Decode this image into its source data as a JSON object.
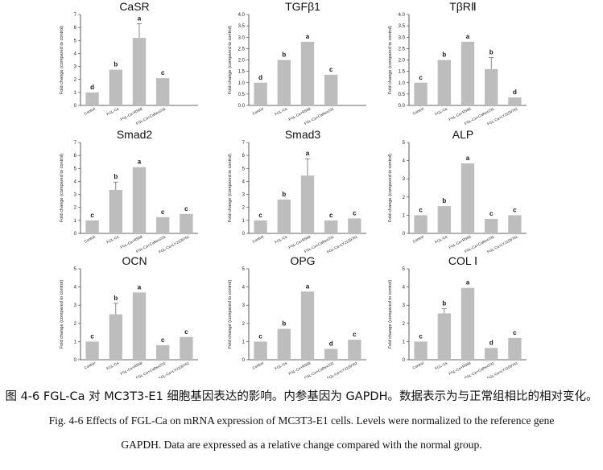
{
  "chart_data": [
    {
      "type": "bar",
      "title": "CaSR",
      "ylabel": "Fold change (compared to control)",
      "ylim": [
        0,
        7
      ],
      "yticks": [
        0,
        1,
        2,
        3,
        4,
        5,
        6,
        7
      ],
      "categories": [
        "Control",
        "FGL-Ca",
        "FGL-Ca+R568",
        "FGL-Ca+Calhex231"
      ],
      "values": [
        1.0,
        2.75,
        5.2,
        2.1
      ],
      "errors": [
        0.0,
        0.0,
        1.1,
        0.0
      ],
      "significance": [
        "d",
        "b",
        "a",
        "c"
      ]
    },
    {
      "type": "bar",
      "title": "TGFβ1",
      "ylabel": "Fold change (compared to control)",
      "ylim": [
        0,
        4
      ],
      "yticks": [
        0,
        0.5,
        1,
        1.5,
        2,
        2.5,
        3,
        3.5,
        4
      ],
      "ytick_labels": [
        "0.0",
        "0.5",
        "1.0",
        "1.5",
        "2.0",
        "2.5",
        "3.0",
        "3.5",
        "4.0"
      ],
      "categories": [
        "Control",
        "FGL-Ca",
        "FGL-Ca+R568",
        "FGL-Ca+Calhex231"
      ],
      "values": [
        1.0,
        2.0,
        2.8,
        1.35
      ],
      "errors": [
        0.0,
        0.0,
        0.0,
        0.0
      ],
      "significance": [
        "d",
        "b",
        "a",
        "c"
      ]
    },
    {
      "type": "bar",
      "title": "TβRⅡ",
      "ylabel": "Fold change (compared to control)",
      "ylim": [
        0,
        4
      ],
      "yticks": [
        0,
        0.5,
        1,
        1.5,
        2,
        2.5,
        3,
        3.5,
        4
      ],
      "ytick_labels": [
        "0.0",
        "0.5",
        "1.0",
        "1.5",
        "2.0",
        "2.5",
        "3.0",
        "3.5",
        "4.0"
      ],
      "categories": [
        "Control",
        "FGL-Ca",
        "FGL-Ca+R568",
        "FGL-Ca+Calhex231",
        "FGL-Ca+LY2109761"
      ],
      "values": [
        1.0,
        2.0,
        2.8,
        1.6,
        0.35
      ],
      "errors": [
        0.0,
        0.0,
        0.0,
        0.5,
        0.0
      ],
      "significance": [
        "c",
        "b",
        "a",
        "b",
        "d"
      ]
    },
    {
      "type": "bar",
      "title": "Smad2",
      "ylabel": "Fold change (compared to control)",
      "ylim": [
        0,
        7
      ],
      "yticks": [
        0,
        1,
        2,
        3,
        4,
        5,
        6,
        7
      ],
      "categories": [
        "Control",
        "FGL-Ca",
        "FGL-Ca+R568",
        "FGL-Ca+Calhex231",
        "FGL-Ca+LY2109761"
      ],
      "values": [
        1.0,
        3.35,
        5.1,
        1.25,
        1.5
      ],
      "errors": [
        0.0,
        0.6,
        0.0,
        0.0,
        0.0
      ],
      "significance": [
        "c",
        "b",
        "a",
        "c",
        "c"
      ]
    },
    {
      "type": "bar",
      "title": "Smad3",
      "ylabel": "Fold change (compared to control)",
      "ylim": [
        0,
        7
      ],
      "yticks": [
        0,
        1,
        2,
        3,
        4,
        5,
        6,
        7
      ],
      "categories": [
        "Control",
        "FGL-Ca",
        "FGL-Ca+R568",
        "FGL-Ca+Calhex231",
        "FGL-Ca+LY2109761"
      ],
      "values": [
        1.0,
        2.6,
        4.45,
        1.0,
        1.15
      ],
      "errors": [
        0.0,
        0.0,
        1.3,
        0.0,
        0.0
      ],
      "significance": [
        "c",
        "b",
        "a",
        "c",
        "c"
      ]
    },
    {
      "type": "bar",
      "title": "ALP",
      "ylabel": "Fold change (compared to control)",
      "ylim": [
        0,
        5
      ],
      "yticks": [
        0,
        1,
        2,
        3,
        4,
        5
      ],
      "categories": [
        "Control",
        "FGL-Ca",
        "FGL-Ca+R568",
        "FGL-Ca+Calhex231",
        "FGL-Ca+LY2109761"
      ],
      "values": [
        1.0,
        1.5,
        3.85,
        0.8,
        1.0
      ],
      "errors": [
        0.0,
        0.0,
        0.0,
        0.0,
        0.0
      ],
      "significance": [
        "c",
        "b",
        "a",
        "c",
        "c"
      ]
    },
    {
      "type": "bar",
      "title": "OCN",
      "ylabel": "Fold change (compared to control)",
      "ylim": [
        0,
        5
      ],
      "yticks": [
        0,
        1,
        2,
        3,
        4,
        5
      ],
      "categories": [
        "Control",
        "FGL-Ca",
        "FGL-Ca+R568",
        "FGL-Ca+Calhex231",
        "FGL-Ca+LY2109761"
      ],
      "values": [
        1.0,
        2.5,
        3.7,
        0.8,
        1.25
      ],
      "errors": [
        0.0,
        0.6,
        0.0,
        0.0,
        0.0
      ],
      "significance": [
        "c",
        "b",
        "a",
        "c",
        "c"
      ]
    },
    {
      "type": "bar",
      "title": "OPG",
      "ylabel": "Fold change (compared to control)",
      "ylim": [
        0,
        5
      ],
      "yticks": [
        0,
        1,
        2,
        3,
        4,
        5
      ],
      "categories": [
        "Control",
        "FGL-Ca",
        "FGL-Ca+R568",
        "FGL-Ca+Calhex231",
        "FGL-Ca+LY2109761"
      ],
      "values": [
        1.0,
        1.7,
        3.75,
        0.6,
        1.1
      ],
      "errors": [
        0.0,
        0.0,
        0.0,
        0.0,
        0.0
      ],
      "significance": [
        "c",
        "b",
        "a",
        "d",
        "c"
      ]
    },
    {
      "type": "bar",
      "title": "COL Ⅰ",
      "ylabel": "Fold change (compared to control)",
      "ylim": [
        0,
        5
      ],
      "yticks": [
        0,
        1,
        2,
        3,
        4,
        5
      ],
      "categories": [
        "Control",
        "FGL-Ca",
        "FGL-Ca+R568",
        "FGL-Ca+Calhex231",
        "FGL-Ca+LY2109761"
      ],
      "values": [
        1.0,
        2.55,
        3.95,
        0.65,
        1.2
      ],
      "errors": [
        0.0,
        0.25,
        0.0,
        0.0,
        0.0
      ],
      "significance": [
        "c",
        "b",
        "a",
        "d",
        "c"
      ]
    }
  ],
  "caption": {
    "zh": "图 4-6 FGL-Ca 对 MC3T3-E1 细胞基因表达的影响。内参基因为 GAPDH。数据表示为与正常组相比的相对变化。",
    "en_line1": "Fig. 4-6 Effects of FGL-Ca on mRNA expression of MC3T3-E1 cells. Levels were normalized to the reference gene",
    "en_line2": "GAPDH. Data are expressed as a relative change compared with the normal group."
  },
  "colors": {
    "bar": "#bdbdbd",
    "axis": "#333333",
    "error": "#555555"
  }
}
